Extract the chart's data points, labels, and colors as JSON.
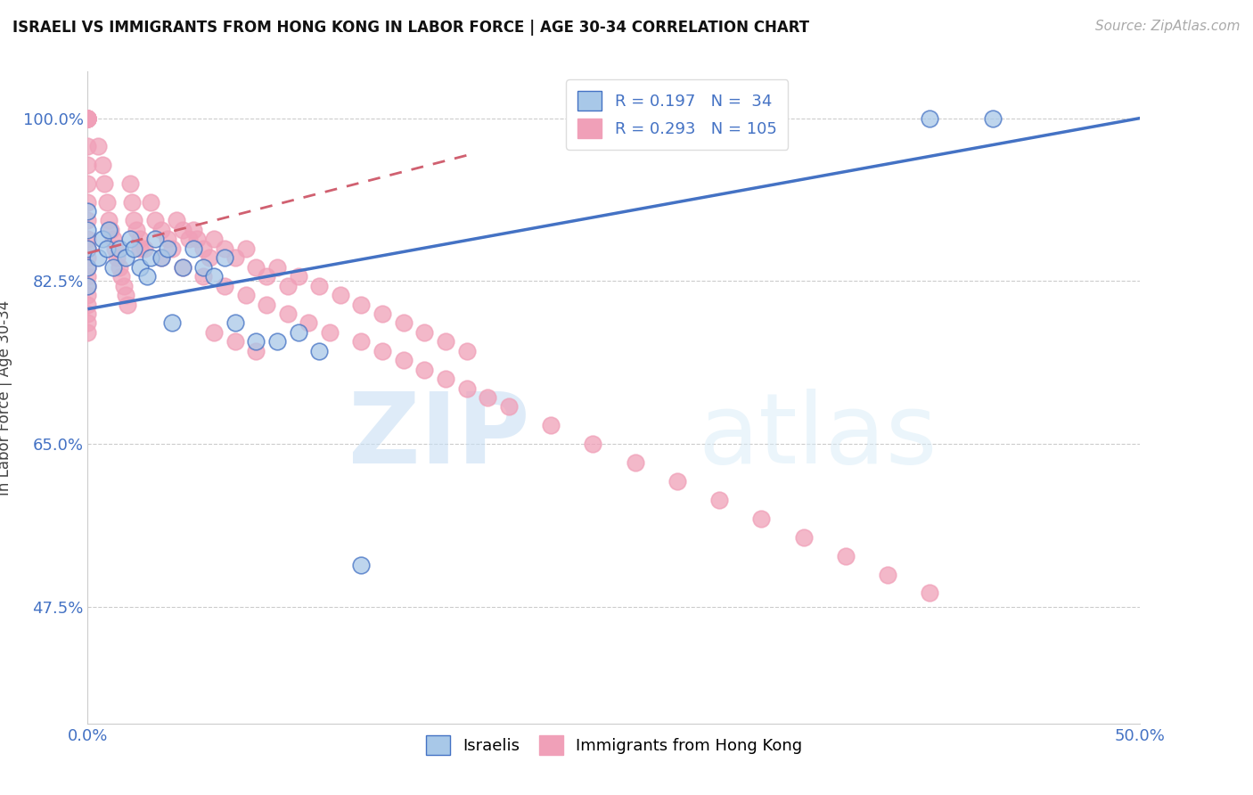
{
  "title": "ISRAELI VS IMMIGRANTS FROM HONG KONG IN LABOR FORCE | AGE 30-34 CORRELATION CHART",
  "source": "Source: ZipAtlas.com",
  "ylabel": "In Labor Force | Age 30-34",
  "xlim": [
    0.0,
    0.5
  ],
  "ylim": [
    0.35,
    1.05
  ],
  "ytick_positions": [
    0.475,
    0.65,
    0.825,
    1.0
  ],
  "ytick_labels": [
    "47.5%",
    "65.0%",
    "82.5%",
    "100.0%"
  ],
  "xtick_positions": [
    0.0,
    0.1,
    0.2,
    0.3,
    0.4,
    0.5
  ],
  "xtick_labels": [
    "0.0%",
    "",
    "",
    "",
    "",
    "50.0%"
  ],
  "grid_color": "#cccccc",
  "israeli_color": "#a8c8e8",
  "israeli_edge_color": "#4472c4",
  "hk_color": "#f0a0b8",
  "hk_edge_color": "#e06080",
  "line_israeli_color": "#4472c4",
  "line_hk_color": "#d06070",
  "R_israeli": 0.197,
  "N_israeli": 34,
  "R_hk": 0.293,
  "N_hk": 105,
  "watermark_zip": "ZIP",
  "watermark_atlas": "atlas",
  "legend_label_1": "Israelis",
  "legend_label_2": "Immigrants from Hong Kong",
  "israeli_line_x0": 0.0,
  "israeli_line_y0": 0.795,
  "israeli_line_x1": 0.5,
  "israeli_line_y1": 1.0,
  "hk_line_x0": 0.0,
  "hk_line_y0": 0.855,
  "hk_line_x1": 0.18,
  "hk_line_y1": 0.96,
  "israeli_x": [
    0.0,
    0.0,
    0.0,
    0.0,
    0.0,
    0.005,
    0.007,
    0.009,
    0.01,
    0.012,
    0.015,
    0.018,
    0.02,
    0.022,
    0.025,
    0.028,
    0.03,
    0.032,
    0.035,
    0.038,
    0.04,
    0.045,
    0.05,
    0.055,
    0.06,
    0.065,
    0.07,
    0.08,
    0.09,
    0.1,
    0.11,
    0.13,
    0.4,
    0.43
  ],
  "israeli_y": [
    0.84,
    0.86,
    0.88,
    0.9,
    0.82,
    0.85,
    0.87,
    0.86,
    0.88,
    0.84,
    0.86,
    0.85,
    0.87,
    0.86,
    0.84,
    0.83,
    0.85,
    0.87,
    0.85,
    0.86,
    0.78,
    0.84,
    0.86,
    0.84,
    0.83,
    0.85,
    0.78,
    0.76,
    0.76,
    0.77,
    0.75,
    0.52,
    1.0,
    1.0
  ],
  "hk_x": [
    0.0,
    0.0,
    0.0,
    0.0,
    0.0,
    0.0,
    0.0,
    0.0,
    0.0,
    0.0,
    0.0,
    0.0,
    0.0,
    0.0,
    0.0,
    0.0,
    0.0,
    0.0,
    0.0,
    0.0,
    0.0,
    0.0,
    0.0,
    0.0,
    0.0,
    0.005,
    0.007,
    0.008,
    0.009,
    0.01,
    0.011,
    0.012,
    0.013,
    0.014,
    0.015,
    0.016,
    0.017,
    0.018,
    0.019,
    0.02,
    0.021,
    0.022,
    0.023,
    0.025,
    0.027,
    0.03,
    0.032,
    0.035,
    0.038,
    0.04,
    0.042,
    0.045,
    0.048,
    0.05,
    0.052,
    0.055,
    0.058,
    0.06,
    0.065,
    0.07,
    0.075,
    0.08,
    0.085,
    0.09,
    0.095,
    0.1,
    0.11,
    0.12,
    0.13,
    0.14,
    0.15,
    0.16,
    0.17,
    0.18,
    0.06,
    0.07,
    0.08,
    0.025,
    0.035,
    0.045,
    0.055,
    0.065,
    0.075,
    0.085,
    0.095,
    0.105,
    0.115,
    0.13,
    0.14,
    0.15,
    0.16,
    0.17,
    0.18,
    0.19,
    0.2,
    0.22,
    0.24,
    0.26,
    0.28,
    0.3,
    0.32,
    0.34,
    0.36,
    0.38,
    0.4
  ],
  "hk_y": [
    1.0,
    1.0,
    1.0,
    1.0,
    1.0,
    1.0,
    1.0,
    1.0,
    1.0,
    0.97,
    0.95,
    0.93,
    0.91,
    0.89,
    0.87,
    0.86,
    0.85,
    0.84,
    0.83,
    0.82,
    0.81,
    0.8,
    0.79,
    0.78,
    0.77,
    0.97,
    0.95,
    0.93,
    0.91,
    0.89,
    0.88,
    0.87,
    0.86,
    0.85,
    0.84,
    0.83,
    0.82,
    0.81,
    0.8,
    0.93,
    0.91,
    0.89,
    0.88,
    0.87,
    0.86,
    0.91,
    0.89,
    0.88,
    0.87,
    0.86,
    0.89,
    0.88,
    0.87,
    0.88,
    0.87,
    0.86,
    0.85,
    0.87,
    0.86,
    0.85,
    0.86,
    0.84,
    0.83,
    0.84,
    0.82,
    0.83,
    0.82,
    0.81,
    0.8,
    0.79,
    0.78,
    0.77,
    0.76,
    0.75,
    0.77,
    0.76,
    0.75,
    0.86,
    0.85,
    0.84,
    0.83,
    0.82,
    0.81,
    0.8,
    0.79,
    0.78,
    0.77,
    0.76,
    0.75,
    0.74,
    0.73,
    0.72,
    0.71,
    0.7,
    0.69,
    0.67,
    0.65,
    0.63,
    0.61,
    0.59,
    0.57,
    0.55,
    0.53,
    0.51,
    0.49
  ]
}
